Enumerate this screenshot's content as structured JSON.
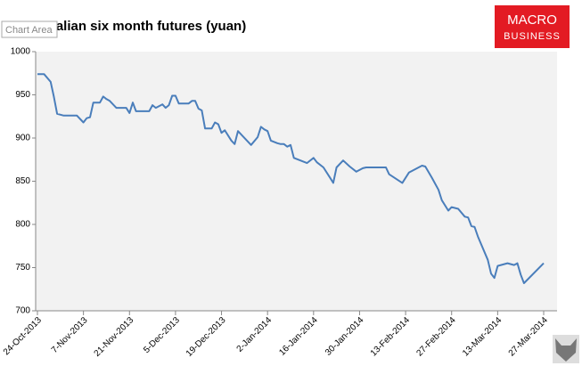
{
  "tooltip": "Chart Area",
  "logo": {
    "line1": "MACRO",
    "line2": "BUSINESS"
  },
  "chart_data": {
    "type": "line",
    "title": "Dalian six month futures (yuan)",
    "x": [
      "2013-10-24",
      "2013-10-26",
      "2013-10-28",
      "2013-10-29",
      "2013-10-30",
      "2013-11-01",
      "2013-11-05",
      "2013-11-07",
      "2013-11-08",
      "2013-11-09",
      "2013-11-10",
      "2013-11-12",
      "2013-11-13",
      "2013-11-14",
      "2013-11-15",
      "2013-11-17",
      "2013-11-20",
      "2013-11-21",
      "2013-11-22",
      "2013-11-23",
      "2013-11-27",
      "2013-11-28",
      "2013-11-29",
      "2013-12-01",
      "2013-12-02",
      "2013-12-03",
      "2013-12-04",
      "2013-12-05",
      "2013-12-06",
      "2013-12-09",
      "2013-12-10",
      "2013-12-11",
      "2013-12-12",
      "2013-12-13",
      "2013-12-14",
      "2013-12-16",
      "2013-12-17",
      "2013-12-18",
      "2013-12-19",
      "2013-12-20",
      "2013-12-22",
      "2013-12-23",
      "2013-12-24",
      "2013-12-28",
      "2013-12-30",
      "2013-12-31",
      "2014-01-01",
      "2014-01-02",
      "2014-01-03",
      "2014-01-05",
      "2014-01-06",
      "2014-01-07",
      "2014-01-08",
      "2014-01-09",
      "2014-01-10",
      "2014-01-14",
      "2014-01-16",
      "2014-01-17",
      "2014-01-19",
      "2014-01-21",
      "2014-01-22",
      "2014-01-23",
      "2014-01-25",
      "2014-01-27",
      "2014-01-29",
      "2014-01-31",
      "2014-02-01",
      "2014-02-07",
      "2014-02-08",
      "2014-02-12",
      "2014-02-14",
      "2014-02-18",
      "2014-02-19",
      "2014-02-21",
      "2014-02-23",
      "2014-02-24",
      "2014-02-26",
      "2014-02-27",
      "2014-03-01",
      "2014-03-03",
      "2014-03-04",
      "2014-03-05",
      "2014-03-06",
      "2014-03-07",
      "2014-03-10",
      "2014-03-11",
      "2014-03-12",
      "2014-03-13",
      "2014-03-16",
      "2014-03-18",
      "2014-03-19",
      "2014-03-20",
      "2014-03-21",
      "2014-03-27"
    ],
    "values": [
      974,
      974,
      965,
      948,
      928,
      926,
      926,
      918,
      923,
      924,
      941,
      941,
      948,
      945,
      943,
      935,
      935,
      929,
      941,
      931,
      931,
      938,
      935,
      939,
      935,
      938,
      949,
      949,
      940,
      940,
      943,
      943,
      934,
      932,
      911,
      911,
      918,
      916,
      906,
      909,
      897,
      893,
      908,
      892,
      901,
      913,
      910,
      908,
      897,
      894,
      893,
      893,
      890,
      892,
      877,
      871,
      877,
      872,
      866,
      854,
      848,
      866,
      874,
      867,
      861,
      865,
      866,
      866,
      858,
      848,
      860,
      868,
      867,
      854,
      840,
      828,
      816,
      820,
      818,
      809,
      808,
      798,
      797,
      786,
      759,
      743,
      738,
      752,
      755,
      753,
      755,
      742,
      732,
      755
    ],
    "color": "#4a7ebb",
    "xlim": [
      "2013-10-24",
      "2014-03-27"
    ],
    "xticks": [
      {
        "value": "2013-10-24",
        "label": "24-Oct-2013"
      },
      {
        "value": "2013-11-07",
        "label": "7-Nov-2013"
      },
      {
        "value": "2013-11-21",
        "label": "21-Nov-2013"
      },
      {
        "value": "2013-12-05",
        "label": "5-Dec-2013"
      },
      {
        "value": "2013-12-19",
        "label": "19-Dec-2013"
      },
      {
        "value": "2014-01-02",
        "label": "2-Jan-2014"
      },
      {
        "value": "2014-01-16",
        "label": "16-Jan-2014"
      },
      {
        "value": "2014-01-30",
        "label": "30-Jan-2014"
      },
      {
        "value": "2014-02-13",
        "label": "13-Feb-2014"
      },
      {
        "value": "2014-02-27",
        "label": "27-Feb-2014"
      },
      {
        "value": "2014-03-13",
        "label": "13-Mar-2014"
      },
      {
        "value": "2014-03-27",
        "label": "27-Mar-2014"
      }
    ],
    "ylim": [
      700,
      1000
    ],
    "yticks": [
      700,
      750,
      800,
      850,
      900,
      950,
      1000
    ]
  }
}
